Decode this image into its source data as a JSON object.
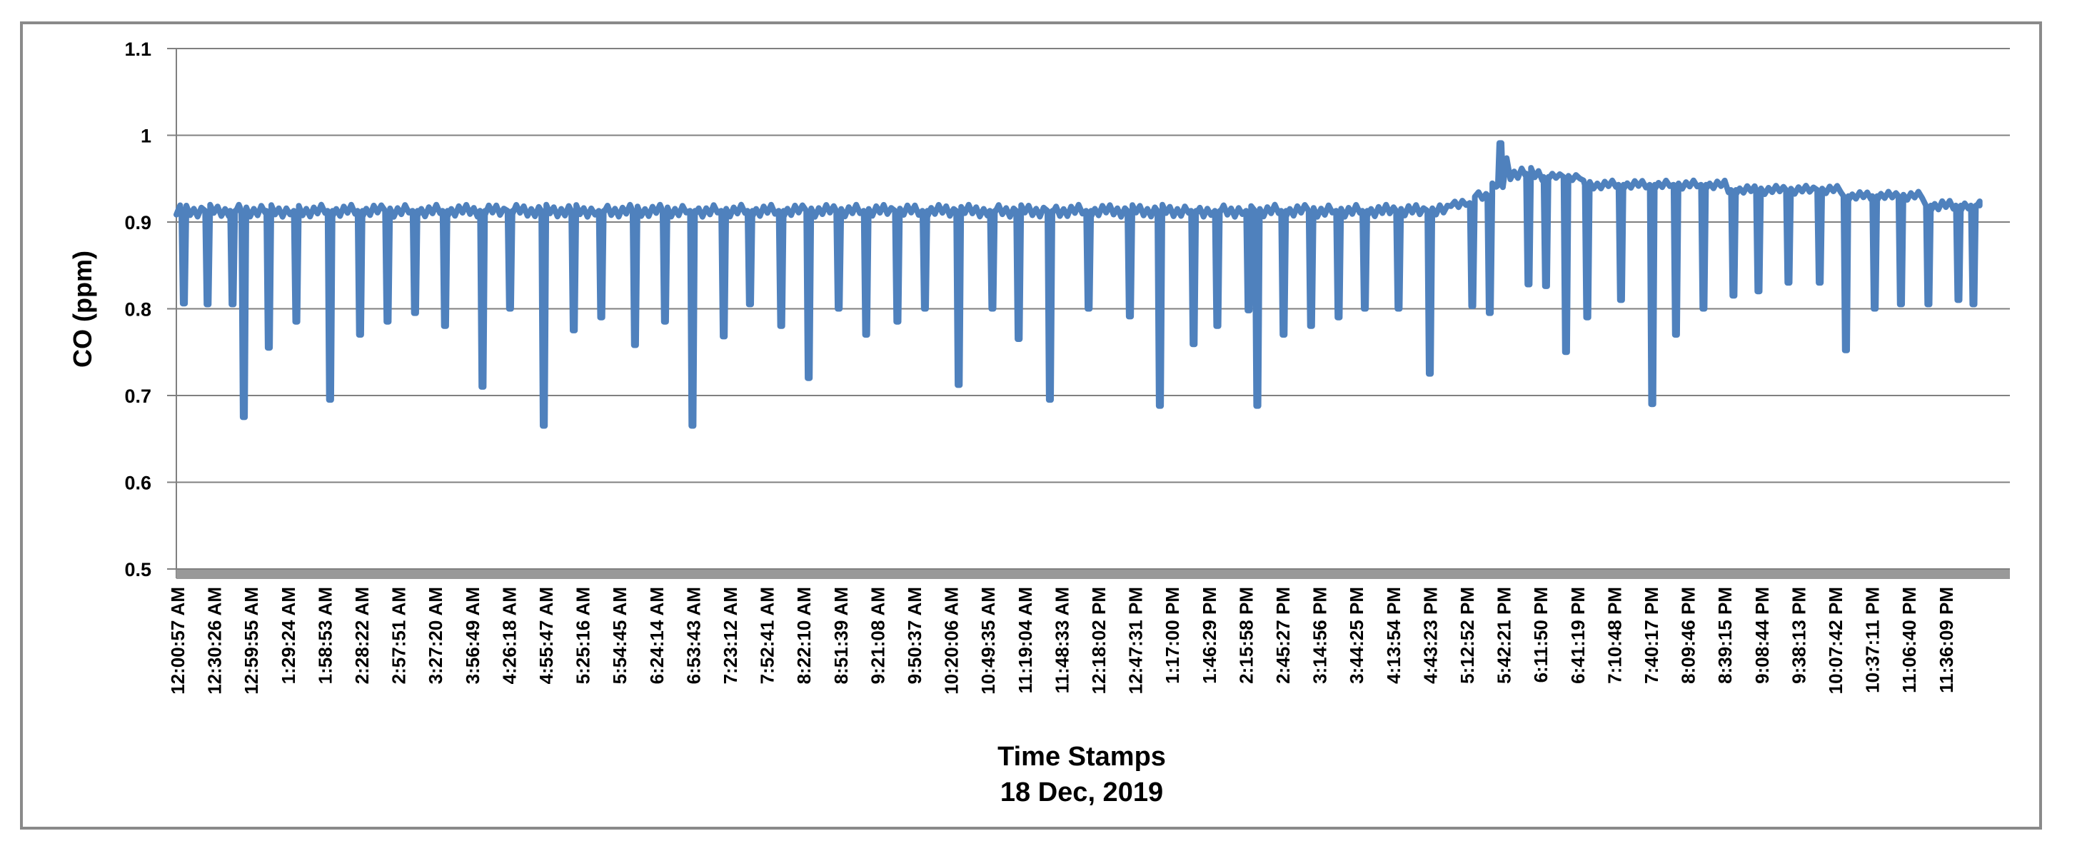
{
  "chart_data": {
    "type": "line",
    "title": "",
    "xlabel": "Time Stamps",
    "xlabel2": "18 Dec, 2019",
    "ylabel": "CO (ppm)",
    "ylim": [
      0.5,
      1.1
    ],
    "grid": "horizontal",
    "legend": false,
    "ytick_values": [
      1.1,
      1.0,
      0.9,
      0.8,
      0.7,
      0.6,
      0.5
    ],
    "ytick_labels": [
      "1.1",
      "1",
      "0.9",
      "0.8",
      "0.7",
      "0.6",
      "0.5"
    ],
    "x_tick_interval_seconds": 1769,
    "x_tick_labels": [
      "12:00:57 AM",
      "12:30:26 AM",
      "12:59:55 AM",
      "1:29:24 AM",
      "1:58:53 AM",
      "2:28:22 AM",
      "2:57:51 AM",
      "3:27:20 AM",
      "3:56:49 AM",
      "4:26:18 AM",
      "4:55:47 AM",
      "5:25:16 AM",
      "5:54:45 AM",
      "6:24:14 AM",
      "6:53:43 AM",
      "7:23:12 AM",
      "7:52:41 AM",
      "8:22:10 AM",
      "8:51:39 AM",
      "9:21:08 AM",
      "9:50:37 AM",
      "10:20:06 AM",
      "10:49:35 AM",
      "11:19:04 AM",
      "11:48:33 AM",
      "12:18:02 PM",
      "12:47:31 PM",
      "1:17:00 PM",
      "1:46:29 PM",
      "2:15:58 PM",
      "2:45:27 PM",
      "3:14:56 PM",
      "3:44:25 PM",
      "4:13:54 PM",
      "4:43:23 PM",
      "5:12:52 PM",
      "5:42:21 PM",
      "6:11:50 PM",
      "6:41:19 PM",
      "7:10:48 PM",
      "7:40:17 PM",
      "8:09:46 PM",
      "8:39:15 PM",
      "9:08:44 PM",
      "9:38:13 PM",
      "10:07:42 PM",
      "10:37:11 PM",
      "11:06:40 PM",
      "11:36:09 PM"
    ],
    "series": {
      "name": "CO",
      "color": "#4F81BD",
      "t_start": 0,
      "t_end": 1443,
      "sample_minutes": 3,
      "dip_halfwidth_minutes": 2.0,
      "baseline_segments": [
        [
          0,
          1020,
          0.913,
          0.007
        ],
        [
          1020,
          1038,
          0.922,
          0.005
        ],
        [
          1038,
          1052,
          0.931,
          0.005
        ],
        [
          1052,
          1062,
          0.942,
          0.004
        ],
        [
          1062,
          1066,
          0.972,
          0.003
        ],
        [
          1066,
          1092,
          0.956,
          0.007
        ],
        [
          1092,
          1126,
          0.952,
          0.004
        ],
        [
          1126,
          1240,
          0.943,
          0.005
        ],
        [
          1240,
          1335,
          0.937,
          0.005
        ],
        [
          1335,
          1398,
          0.93,
          0.005
        ],
        [
          1398,
          1443,
          0.919,
          0.006
        ]
      ],
      "dips": [
        [
          6,
          0.806
        ],
        [
          25,
          0.805
        ],
        [
          45,
          0.805
        ],
        [
          54,
          0.675
        ],
        [
          74,
          0.755
        ],
        [
          96,
          0.785
        ],
        [
          123,
          0.695
        ],
        [
          147,
          0.77
        ],
        [
          169,
          0.785
        ],
        [
          191,
          0.795
        ],
        [
          215,
          0.78
        ],
        [
          245,
          0.71
        ],
        [
          267,
          0.8
        ],
        [
          294,
          0.665
        ],
        [
          318,
          0.775
        ],
        [
          340,
          0.79
        ],
        [
          367,
          0.758
        ],
        [
          391,
          0.785
        ],
        [
          413,
          0.665
        ],
        [
          438,
          0.768
        ],
        [
          459,
          0.805
        ],
        [
          484,
          0.78
        ],
        [
          506,
          0.72
        ],
        [
          530,
          0.8
        ],
        [
          552,
          0.77
        ],
        [
          577,
          0.785
        ],
        [
          599,
          0.8
        ],
        [
          626,
          0.712
        ],
        [
          653,
          0.8
        ],
        [
          674,
          0.765
        ],
        [
          699,
          0.695
        ],
        [
          730,
          0.8
        ],
        [
          763,
          0.791
        ],
        [
          787,
          0.688
        ],
        [
          814,
          0.759
        ],
        [
          833,
          0.78
        ],
        [
          858,
          0.798
        ],
        [
          865,
          0.688
        ],
        [
          886,
          0.77
        ],
        [
          908,
          0.78
        ],
        [
          930,
          0.79
        ],
        [
          951,
          0.8
        ],
        [
          978,
          0.8
        ],
        [
          1003,
          0.725
        ],
        [
          1037,
          0.803
        ],
        [
          1051,
          0.795
        ],
        [
          1082,
          0.828
        ],
        [
          1096,
          0.826
        ],
        [
          1112,
          0.75
        ],
        [
          1129,
          0.79
        ],
        [
          1156,
          0.81
        ],
        [
          1181,
          0.69
        ],
        [
          1200,
          0.77
        ],
        [
          1222,
          0.8
        ],
        [
          1246,
          0.815
        ],
        [
          1266,
          0.82
        ],
        [
          1290,
          0.83
        ],
        [
          1315,
          0.83
        ],
        [
          1336,
          0.752
        ],
        [
          1359,
          0.8
        ],
        [
          1380,
          0.805
        ],
        [
          1402,
          0.805
        ],
        [
          1426,
          0.81
        ],
        [
          1438,
          0.805
        ]
      ],
      "spikes": [
        [
          1059.5,
          0.991
        ]
      ]
    },
    "style": {
      "line_color": "#4F81BD",
      "gridline_color": "#808080",
      "axis_color": "#808080",
      "axis_band_color": "#999999",
      "border_color": "#8a8a8a",
      "text_color": "#000000",
      "background": "#FFFFFF"
    }
  }
}
